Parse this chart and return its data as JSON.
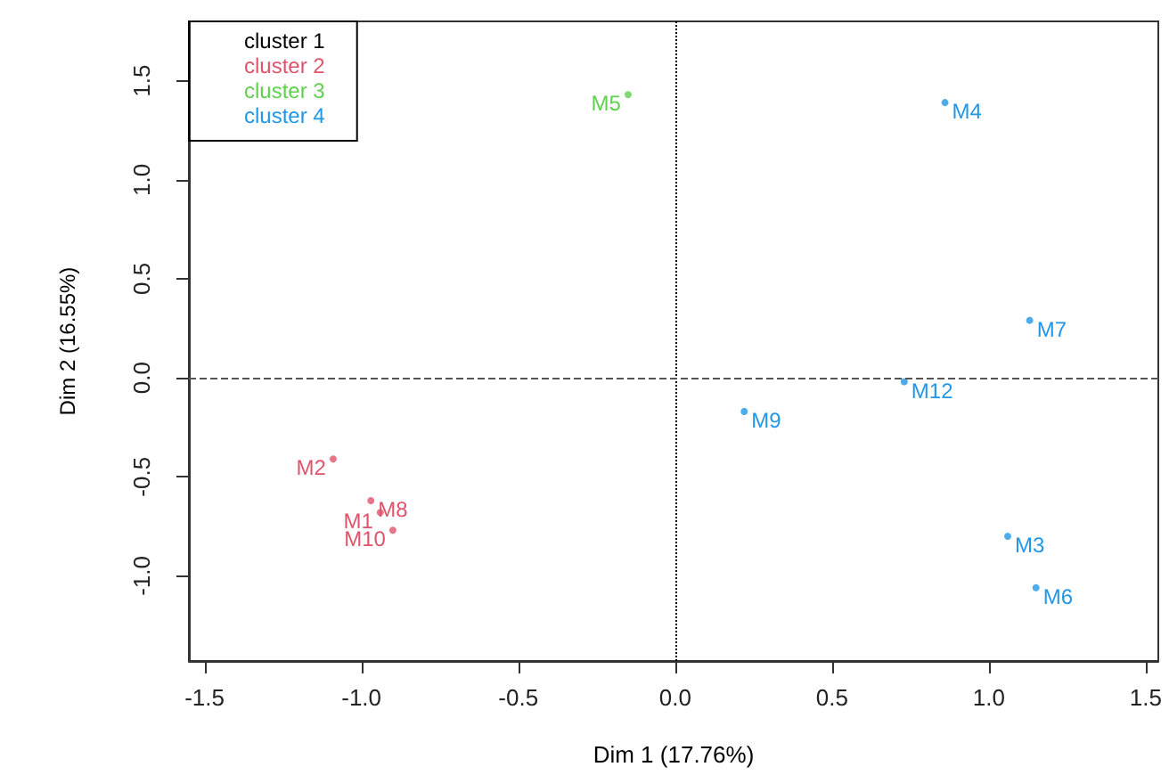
{
  "chart_data": {
    "type": "scatter",
    "xlabel": "Dim 1 (17.76%)",
    "ylabel": "Dim 2 (16.55%)",
    "xlim": [
      -1.55,
      1.54
    ],
    "ylim": [
      -1.43,
      1.8
    ],
    "xticks": [
      {
        "value": -1.5,
        "label": "-1.5"
      },
      {
        "value": -1,
        "label": "-1.0"
      },
      {
        "value": -0.5,
        "label": "-0.5"
      },
      {
        "value": 0,
        "label": "0.0"
      },
      {
        "value": 0.5,
        "label": "0.5"
      },
      {
        "value": 1,
        "label": "1.0"
      },
      {
        "value": 1.5,
        "label": "1.5"
      }
    ],
    "yticks": [
      {
        "value": -1,
        "label": "-1.0"
      },
      {
        "value": -0.5,
        "label": "-0.5"
      },
      {
        "value": 0,
        "label": "0.0"
      },
      {
        "value": 0.5,
        "label": "0.5"
      },
      {
        "value": 1,
        "label": "1.0"
      },
      {
        "value": 1.5,
        "label": "1.5"
      }
    ],
    "series": [
      {
        "name": "cluster 1",
        "color": "#000000"
      },
      {
        "name": "cluster 2",
        "color": "#df536b",
        "x": [
          -1.09,
          -0.97,
          -0.94,
          -0.9
        ],
        "values": [
          -0.41,
          -0.62,
          -0.68,
          -0.77
        ]
      },
      {
        "name": "cluster 3",
        "color": "#61d04f",
        "x": [
          -0.15
        ],
        "values": [
          1.43
        ]
      },
      {
        "name": "cluster 4",
        "color": "#2297e6",
        "x": [
          0.86,
          1.13,
          0.73,
          0.22,
          1.06,
          1.15
        ],
        "values": [
          1.39,
          0.29,
          -0.02,
          -0.17,
          -0.8,
          -1.06
        ]
      }
    ],
    "annotations": [
      {
        "text": "M2",
        "x": -1.09,
        "y": -0.41
      },
      {
        "text": "M8",
        "x": -0.97,
        "y": -0.62
      },
      {
        "text": "M1",
        "x": -0.94,
        "y": -0.68
      },
      {
        "text": "M10",
        "x": -0.9,
        "y": -0.77
      },
      {
        "text": "M5",
        "x": -0.15,
        "y": 1.43
      },
      {
        "text": "M4",
        "x": 0.86,
        "y": 1.39
      },
      {
        "text": "M7",
        "x": 1.13,
        "y": 0.29
      },
      {
        "text": "M12",
        "x": 0.73,
        "y": -0.02
      },
      {
        "text": "M9",
        "x": 0.22,
        "y": -0.17
      },
      {
        "text": "M3",
        "x": 1.06,
        "y": -0.8
      },
      {
        "text": "M6",
        "x": 1.15,
        "y": -1.06
      }
    ],
    "ref_lines": [
      {
        "axis": "x",
        "value": 0,
        "line_style": "dotted",
        "color": "#000000"
      },
      {
        "axis": "y",
        "value": 0,
        "line_style": "dashed",
        "color": "#555555"
      }
    ],
    "legend": "top left",
    "marker": "circle",
    "grid": false
  }
}
